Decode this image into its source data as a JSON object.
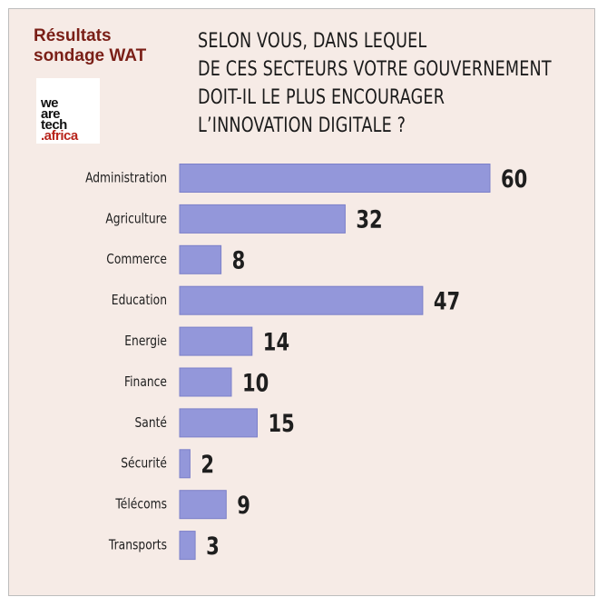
{
  "brand": {
    "title_line1": "Résultats",
    "title_line2": "sondage WAT",
    "logo_lines": [
      "we",
      "are",
      "tech",
      ".africa"
    ]
  },
  "question_lines": [
    "SELON VOUS, DANS LEQUEL",
    "DE CES SECTEURS VOTRE GOUVERNEMENT",
    "DOIT-IL LE PLUS ENCOURAGER",
    "L’INNOVATION DIGITALE ?"
  ],
  "colors": {
    "bar": "#9397da",
    "bar_edge": "#7c80c9",
    "background": "#f6ebe6",
    "brand": "#7a1f17",
    "logo_accent": "#b8241b"
  },
  "chart_data": {
    "type": "bar",
    "orientation": "horizontal",
    "categories": [
      "Administration",
      "Agriculture",
      "Commerce",
      "Education",
      "Energie",
      "Finance",
      "Santé",
      "Sécurité",
      "Télécoms",
      "Transports"
    ],
    "values": [
      60,
      32,
      8,
      47,
      14,
      10,
      15,
      2,
      9,
      3
    ],
    "title": "SELON VOUS, DANS LEQUEL DE CES SECTEURS VOTRE GOUVERNEMENT DOIT-IL LE PLUS ENCOURAGER L’INNOVATION DIGITALE ?",
    "xlim": [
      0,
      60
    ],
    "grid": false,
    "legend": "none"
  }
}
